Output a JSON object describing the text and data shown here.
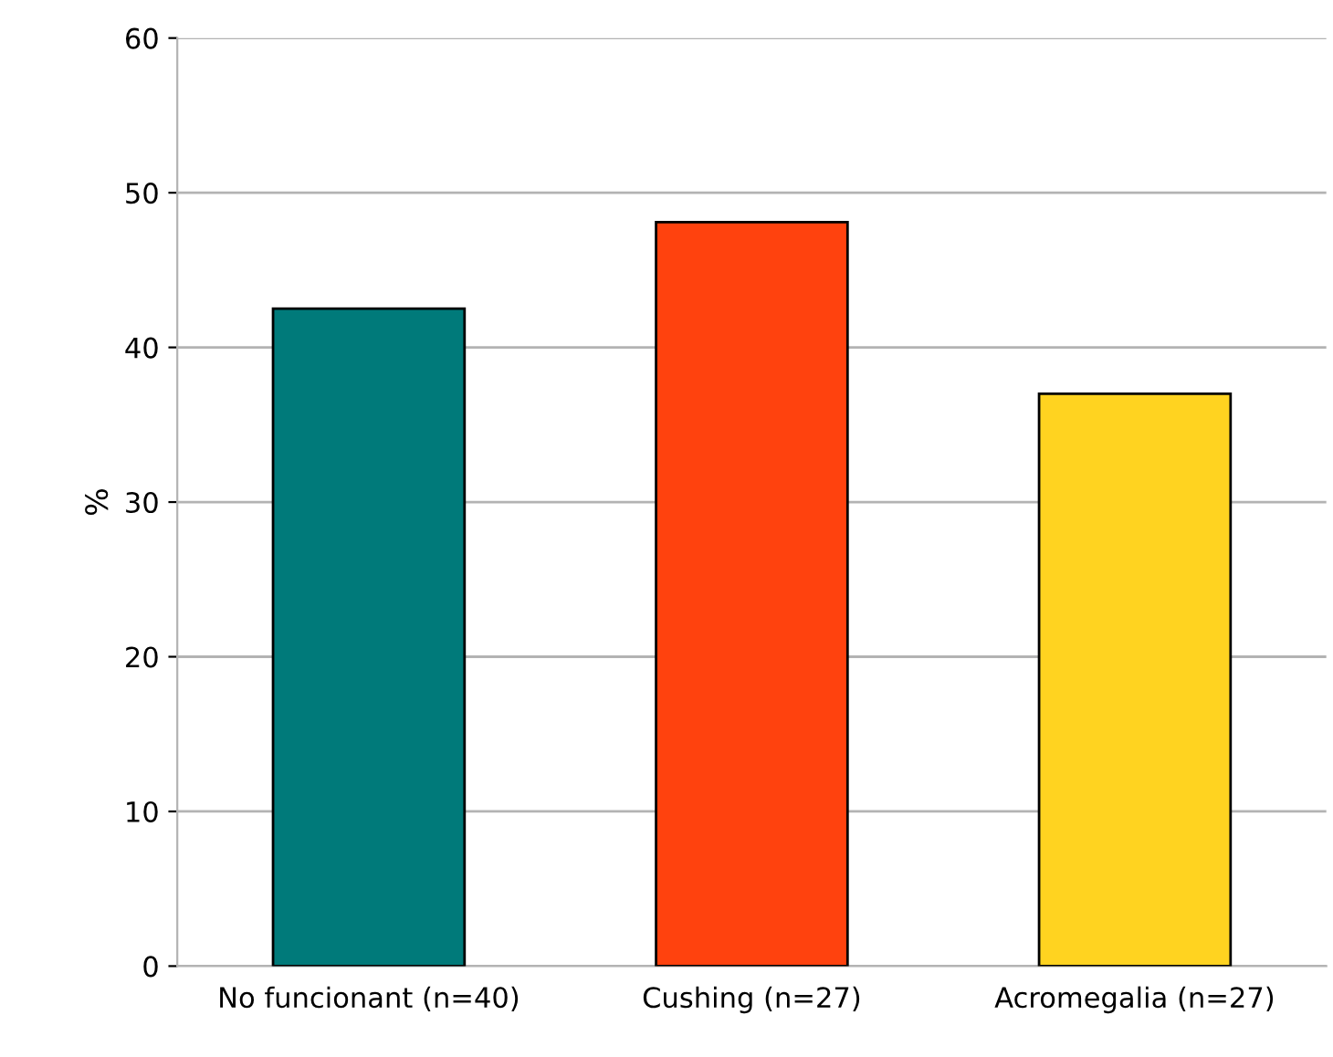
{
  "chart_data": {
    "type": "bar",
    "ylabel": "%",
    "categories": [
      "No funcionant (n=40)",
      "Cushing (n=27)",
      "Acromegalia (n=27)"
    ],
    "values": [
      42.5,
      48.1,
      37.0
    ],
    "colors": [
      "#007a7a",
      "#ff420e",
      "#ffd320"
    ],
    "ylim": [
      0,
      60
    ],
    "yticks": [
      0,
      10,
      20,
      30,
      40,
      50,
      60
    ],
    "grid": "y",
    "legend": false
  }
}
